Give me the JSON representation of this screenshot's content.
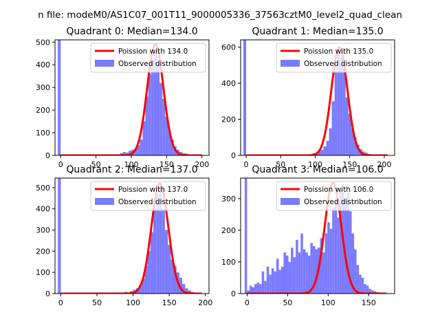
{
  "figure": {
    "suptitle": "n file: modeM0/AS1C07_001T11_9000005336_37563cztM0_level2_quad_clean",
    "colors": {
      "hist": "#7b7bff",
      "fit": "#ff0000",
      "axes": "#000000"
    }
  },
  "chart_data": [
    {
      "type": "bar",
      "title": "Quadrant 0: Median=134.0",
      "xlabel": "",
      "ylabel": "",
      "xlim": [
        -8,
        210
      ],
      "ylim": [
        0,
        510
      ],
      "xticks": [
        0,
        50,
        100,
        150,
        200
      ],
      "yticks": [
        0,
        100,
        200,
        300,
        400,
        500
      ],
      "legend": {
        "position": "top-right",
        "fit_label": "Poission with 134.0",
        "hist_label": "Observed distribution"
      },
      "hist": {
        "bin_width": 4,
        "bins": [
          [
            -4,
            510
          ],
          [
            0,
            2
          ],
          [
            40,
            2
          ],
          [
            60,
            3
          ],
          [
            76,
            5
          ],
          [
            84,
            10
          ],
          [
            88,
            15
          ],
          [
            92,
            12
          ],
          [
            96,
            20
          ],
          [
            100,
            25
          ],
          [
            104,
            30
          ],
          [
            108,
            45
          ],
          [
            112,
            70
          ],
          [
            116,
            150
          ],
          [
            120,
            260
          ],
          [
            124,
            360
          ],
          [
            128,
            420
          ],
          [
            132,
            460
          ],
          [
            136,
            400
          ],
          [
            140,
            320
          ],
          [
            144,
            250
          ],
          [
            148,
            170
          ],
          [
            152,
            110
          ],
          [
            156,
            70
          ],
          [
            160,
            40
          ],
          [
            164,
            25
          ],
          [
            168,
            15
          ],
          [
            172,
            10
          ],
          [
            176,
            8
          ],
          [
            180,
            5
          ],
          [
            188,
            3
          ],
          [
            196,
            2
          ]
        ]
      },
      "fit": {
        "mean": 134.0,
        "peak": 490,
        "xmin": 0,
        "xmax": 200
      }
    },
    {
      "type": "bar",
      "title": "Quadrant 1: Median=135.0",
      "xlabel": "",
      "ylabel": "",
      "xlim": [
        -8,
        215
      ],
      "ylim": [
        0,
        640
      ],
      "xticks": [
        0,
        50,
        100,
        150,
        200
      ],
      "yticks": [
        0,
        200,
        400,
        600
      ],
      "legend": {
        "position": "top-right",
        "fit_label": "Poission with 135.0",
        "hist_label": "Observed distribution"
      },
      "hist": {
        "bin_width": 4,
        "bins": [
          [
            -4,
            640
          ],
          [
            0,
            2
          ],
          [
            48,
            2
          ],
          [
            68,
            3
          ],
          [
            80,
            5
          ],
          [
            96,
            12
          ],
          [
            100,
            15
          ],
          [
            104,
            22
          ],
          [
            108,
            30
          ],
          [
            112,
            50
          ],
          [
            116,
            80
          ],
          [
            120,
            150
          ],
          [
            124,
            300
          ],
          [
            128,
            470
          ],
          [
            132,
            570
          ],
          [
            136,
            540
          ],
          [
            140,
            480
          ],
          [
            144,
            320
          ],
          [
            148,
            230
          ],
          [
            152,
            150
          ],
          [
            156,
            100
          ],
          [
            160,
            60
          ],
          [
            164,
            35
          ],
          [
            168,
            22
          ],
          [
            172,
            15
          ],
          [
            176,
            8
          ],
          [
            184,
            5
          ],
          [
            196,
            3
          ]
        ]
      },
      "fit": {
        "mean": 135.0,
        "peak": 600,
        "xmin": 0,
        "xmax": 205
      }
    },
    {
      "type": "bar",
      "title": "Quadrant 2: Median=137.0",
      "xlabel": "",
      "ylabel": "",
      "xlim": [
        -8,
        205
      ],
      "ylim": [
        0,
        545
      ],
      "xticks": [
        0,
        50,
        100,
        150,
        200
      ],
      "yticks": [
        0,
        100,
        200,
        300,
        400,
        500
      ],
      "legend": {
        "position": "top-right",
        "fit_label": "Poission with 137.0",
        "hist_label": "Observed distribution"
      },
      "hist": {
        "bin_width": 4,
        "bins": [
          [
            -4,
            545
          ],
          [
            0,
            2
          ],
          [
            60,
            3
          ],
          [
            80,
            5
          ],
          [
            88,
            8
          ],
          [
            96,
            12
          ],
          [
            100,
            18
          ],
          [
            104,
            25
          ],
          [
            108,
            40
          ],
          [
            112,
            70
          ],
          [
            116,
            130
          ],
          [
            120,
            200
          ],
          [
            124,
            290
          ],
          [
            128,
            400
          ],
          [
            132,
            470
          ],
          [
            136,
            520
          ],
          [
            140,
            400
          ],
          [
            144,
            300
          ],
          [
            148,
            230
          ],
          [
            152,
            160
          ],
          [
            156,
            130
          ],
          [
            160,
            100
          ],
          [
            164,
            75
          ],
          [
            168,
            45
          ],
          [
            172,
            25
          ],
          [
            176,
            15
          ],
          [
            180,
            8
          ],
          [
            188,
            4
          ]
        ]
      },
      "fit": {
        "mean": 137.0,
        "peak": 520,
        "xmin": 0,
        "xmax": 195
      }
    },
    {
      "type": "bar",
      "title": "Quadrant 3: Median=106.0",
      "xlabel": "",
      "ylabel": "",
      "xlim": [
        -8,
        182
      ],
      "ylim": [
        0,
        365
      ],
      "xticks": [
        0,
        50,
        100,
        150
      ],
      "yticks": [
        0,
        100,
        200,
        300
      ],
      "legend": {
        "position": "top-right",
        "fit_label": "Poission with 106.0",
        "hist_label": "Observed distribution"
      },
      "hist": {
        "bin_width": 3,
        "bins": [
          [
            -3,
            365
          ],
          [
            0,
            10
          ],
          [
            3,
            25
          ],
          [
            6,
            20
          ],
          [
            9,
            30
          ],
          [
            12,
            35
          ],
          [
            15,
            30
          ],
          [
            18,
            70
          ],
          [
            21,
            40
          ],
          [
            24,
            85
          ],
          [
            27,
            60
          ],
          [
            30,
            80
          ],
          [
            33,
            70
          ],
          [
            36,
            110
          ],
          [
            39,
            75
          ],
          [
            42,
            85
          ],
          [
            45,
            130
          ],
          [
            48,
            120
          ],
          [
            51,
            100
          ],
          [
            54,
            145
          ],
          [
            57,
            115
          ],
          [
            60,
            170
          ],
          [
            63,
            130
          ],
          [
            66,
            190
          ],
          [
            69,
            140
          ],
          [
            72,
            130
          ],
          [
            75,
            120
          ],
          [
            78,
            160
          ],
          [
            81,
            150
          ],
          [
            84,
            140
          ],
          [
            87,
            145
          ],
          [
            90,
            175
          ],
          [
            93,
            130
          ],
          [
            96,
            190
          ],
          [
            99,
            225
          ],
          [
            102,
            205
          ],
          [
            105,
            270
          ],
          [
            108,
            300
          ],
          [
            111,
            240
          ],
          [
            114,
            330
          ],
          [
            117,
            320
          ],
          [
            120,
            300
          ],
          [
            123,
            320
          ],
          [
            126,
            260
          ],
          [
            129,
            190
          ],
          [
            132,
            140
          ],
          [
            135,
            90
          ],
          [
            138,
            60
          ],
          [
            141,
            50
          ],
          [
            144,
            30
          ],
          [
            147,
            25
          ],
          [
            150,
            15
          ],
          [
            153,
            10
          ],
          [
            156,
            8
          ],
          [
            159,
            5
          ],
          [
            162,
            3
          ],
          [
            165,
            2
          ]
        ]
      },
      "fit": {
        "mean": 106.0,
        "peak": 350,
        "xmin": 0,
        "xmax": 172
      }
    }
  ]
}
